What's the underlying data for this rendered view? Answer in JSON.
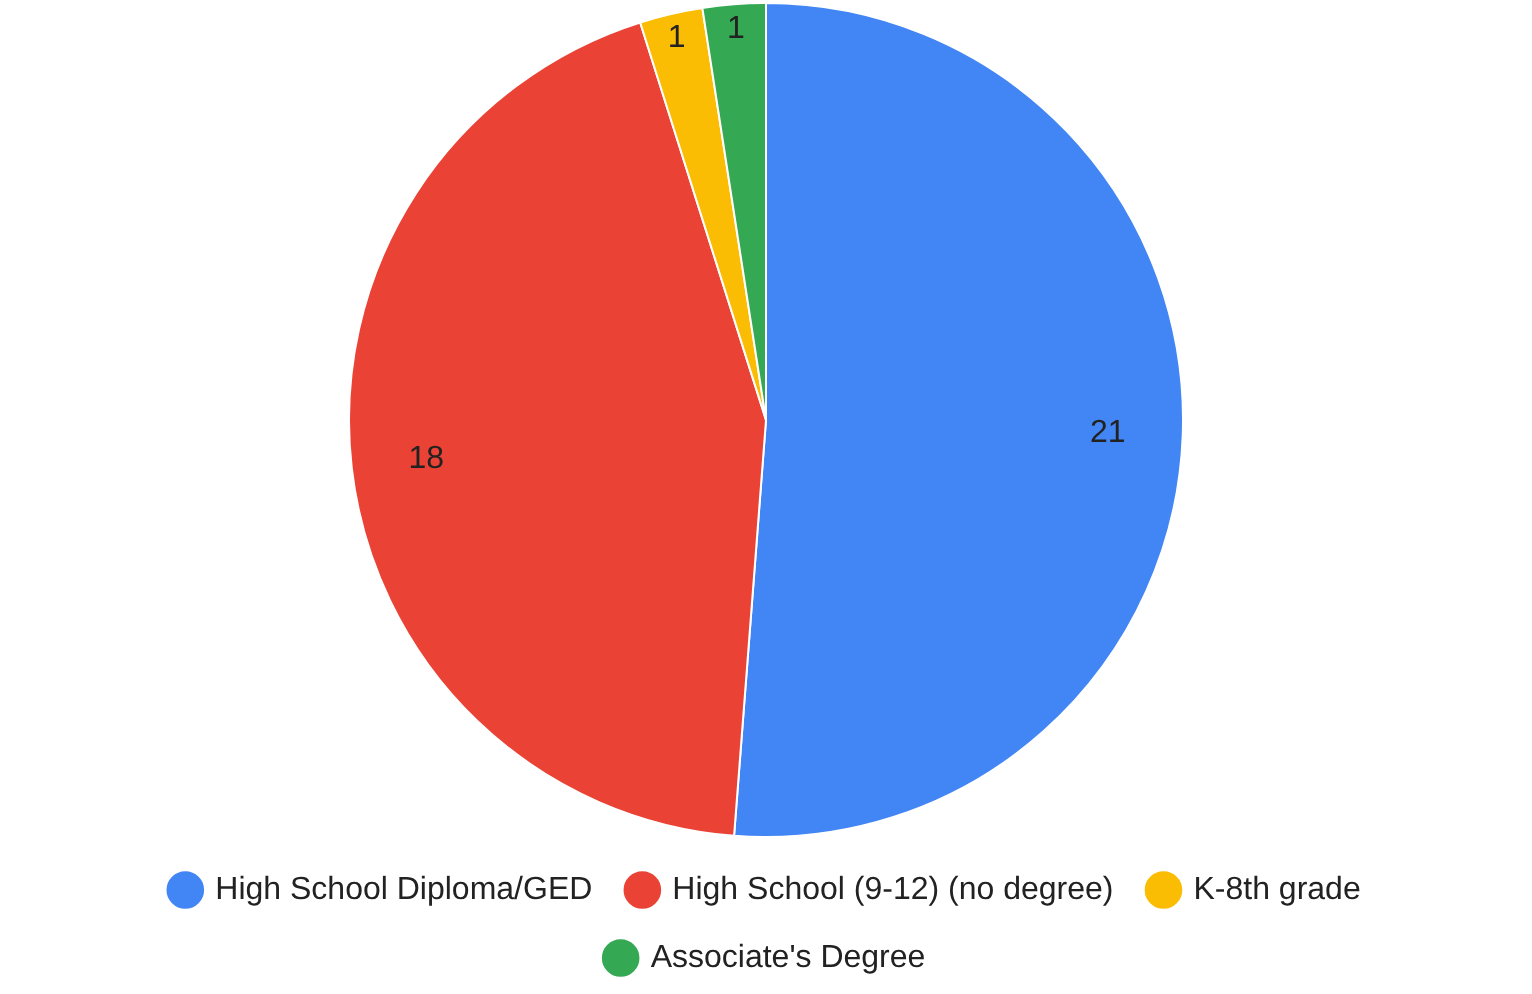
{
  "chart_data": {
    "type": "pie",
    "categories": [
      "High School Diploma/GED",
      "High School (9-12) (no degree)",
      "K-8th grade",
      "Associate's Degree"
    ],
    "values": [
      21,
      18,
      1,
      1
    ],
    "colors": [
      "#4285f4",
      "#ea4335",
      "#fbbc04",
      "#34a853"
    ],
    "data_labels": true,
    "legend": "bottom"
  }
}
